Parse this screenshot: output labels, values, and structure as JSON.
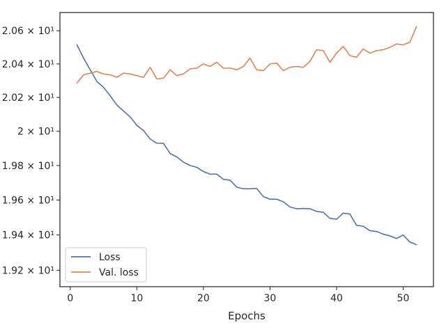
{
  "chart_data": {
    "type": "line",
    "title": "",
    "xlabel": "Epochs",
    "ylabel": "",
    "xlim": [
      -1.55,
      54.55
    ],
    "ylim": [
      19.1075,
      20.7105
    ],
    "yscale": "log",
    "grid": false,
    "legend_position": "lower-left",
    "x_ticks": [
      0,
      10,
      20,
      30,
      40,
      50
    ],
    "x_tick_labels": [
      "0",
      "10",
      "20",
      "30",
      "40",
      "50"
    ],
    "y_ticks": [
      19.2,
      19.4,
      19.6,
      19.8,
      20.0,
      20.2,
      20.4,
      20.6
    ],
    "y_tick_labels": [
      "1.92 × 10¹",
      "1.94 × 10¹",
      "1.96 × 10¹",
      "1.98 × 10¹",
      "2 × 10¹",
      "2.02 × 10¹",
      "2.04 × 10¹",
      "2.06 × 10¹"
    ],
    "x": [
      1,
      2,
      3,
      4,
      5,
      6,
      7,
      8,
      9,
      10,
      11,
      12,
      13,
      14,
      15,
      16,
      17,
      18,
      19,
      20,
      21,
      22,
      23,
      24,
      25,
      26,
      27,
      28,
      29,
      30,
      31,
      32,
      33,
      34,
      35,
      36,
      37,
      38,
      39,
      40,
      41,
      42,
      43,
      44,
      45,
      46,
      47,
      48,
      49,
      50,
      51,
      52
    ],
    "series": [
      {
        "name": "Loss",
        "color": "#4c72b0",
        "values": [
          20.515,
          20.435,
          20.365,
          20.295,
          20.26,
          20.21,
          20.155,
          20.12,
          20.085,
          20.035,
          20.005,
          19.955,
          19.93,
          19.93,
          19.87,
          19.85,
          19.82,
          19.8,
          19.79,
          19.765,
          19.75,
          19.75,
          19.72,
          19.715,
          19.675,
          19.665,
          19.665,
          19.667,
          19.62,
          19.605,
          19.605,
          19.59,
          19.56,
          19.55,
          19.552,
          19.55,
          19.535,
          19.53,
          19.495,
          19.49,
          19.525,
          19.52,
          19.455,
          19.45,
          19.425,
          19.42,
          19.405,
          19.395,
          19.38,
          19.4,
          19.36,
          19.345
        ]
      },
      {
        "name": "Val. loss",
        "color": "#dd8452",
        "values": [
          20.285,
          20.335,
          20.345,
          20.355,
          20.34,
          20.335,
          20.32,
          20.345,
          20.34,
          20.33,
          20.32,
          20.38,
          20.31,
          20.315,
          20.365,
          20.33,
          20.34,
          20.37,
          20.375,
          20.4,
          20.385,
          20.41,
          20.375,
          20.375,
          20.365,
          20.385,
          20.435,
          20.365,
          20.36,
          20.4,
          20.405,
          20.36,
          20.38,
          20.385,
          20.38,
          20.415,
          20.485,
          20.48,
          20.41,
          20.465,
          20.505,
          20.45,
          20.44,
          20.49,
          20.465,
          20.48,
          20.485,
          20.5,
          20.52,
          20.515,
          20.53,
          20.625
        ]
      }
    ]
  }
}
